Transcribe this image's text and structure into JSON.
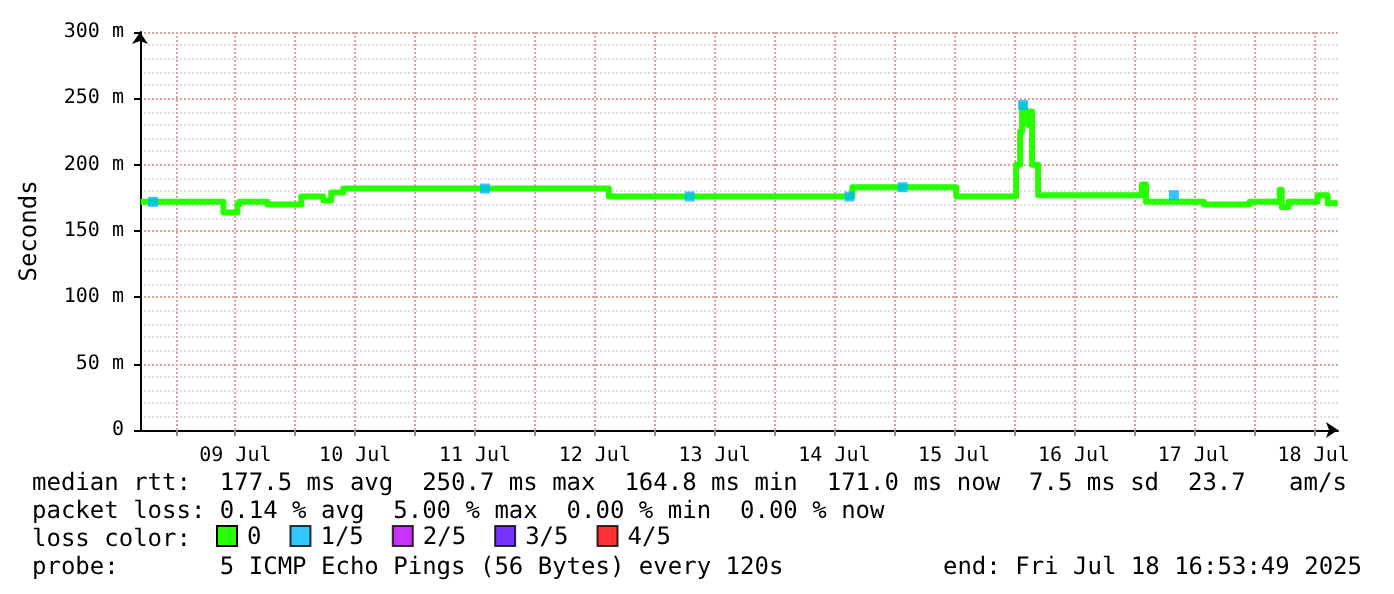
{
  "chart_data": {
    "type": "step",
    "ylabel": "Seconds",
    "legend_title": "loss color:",
    "xlim": [
      "2025-07-08T16:53",
      "2025-07-18T16:53"
    ],
    "xticks": [
      {
        "value": "2025-07-09T00:00",
        "label": null
      },
      {
        "value": "2025-07-09T12:00",
        "label": "09 Jul"
      },
      {
        "value": "2025-07-10T00:00",
        "label": null
      },
      {
        "value": "2025-07-10T12:00",
        "label": "10 Jul"
      },
      {
        "value": "2025-07-11T00:00",
        "label": null
      },
      {
        "value": "2025-07-11T12:00",
        "label": "11 Jul"
      },
      {
        "value": "2025-07-12T00:00",
        "label": null
      },
      {
        "value": "2025-07-12T12:00",
        "label": "12 Jul"
      },
      {
        "value": "2025-07-13T00:00",
        "label": null
      },
      {
        "value": "2025-07-13T12:00",
        "label": "13 Jul"
      },
      {
        "value": "2025-07-14T00:00",
        "label": null
      },
      {
        "value": "2025-07-14T12:00",
        "label": "14 Jul"
      },
      {
        "value": "2025-07-15T00:00",
        "label": null
      },
      {
        "value": "2025-07-15T12:00",
        "label": "15 Jul"
      },
      {
        "value": "2025-07-16T00:00",
        "label": null
      },
      {
        "value": "2025-07-16T12:00",
        "label": "16 Jul"
      },
      {
        "value": "2025-07-17T00:00",
        "label": null
      },
      {
        "value": "2025-07-17T12:00",
        "label": "17 Jul"
      },
      {
        "value": "2025-07-18T00:00",
        "label": null
      },
      {
        "value": "2025-07-18T12:00",
        "label": "18 Jul"
      }
    ],
    "ylim": [
      0,
      300
    ],
    "yticks": [
      0,
      {
        "value": 50,
        "label": "50 m"
      },
      {
        "value": 100,
        "label": "100 m"
      },
      {
        "value": 150,
        "label": "150 m"
      },
      {
        "value": 200,
        "label": "200 m"
      },
      {
        "value": 250,
        "label": "250 m"
      },
      {
        "value": 300,
        "label": "300 m"
      }
    ],
    "grid": true,
    "legend": "bottom",
    "line_style": "solid",
    "marker": "none",
    "series": [
      {
        "name": "0",
        "color": "#26ff00",
        "x": [
          "2025-07-08T17:00",
          "2025-07-09T09:36",
          "2025-07-09T12:24",
          "2025-07-09T12:48",
          "2025-07-09T18:24",
          "2025-07-10T01:12",
          "2025-07-10T05:36",
          "2025-07-10T07:12",
          "2025-07-10T09:36",
          "2025-07-12T14:48",
          "2025-07-14T15:36",
          "2025-07-15T12:24",
          "2025-07-16T00:24",
          "2025-07-16T01:12",
          "2025-07-16T01:36",
          "2025-07-16T02:00",
          "2025-07-16T02:24",
          "2025-07-16T02:48",
          "2025-07-16T03:12",
          "2025-07-16T03:36",
          "2025-07-16T04:48",
          "2025-07-17T01:36",
          "2025-07-17T02:24",
          "2025-07-17T14:00",
          "2025-07-17T23:12",
          "2025-07-18T05:12",
          "2025-07-18T05:36",
          "2025-07-18T07:00",
          "2025-07-18T12:48",
          "2025-07-18T14:48",
          "2025-07-18T16:50"
        ],
        "values": [
          172,
          164,
          170,
          172,
          170,
          176,
          173,
          179,
          182,
          176,
          183,
          176,
          200,
          225,
          245,
          235,
          240,
          230,
          240,
          200,
          177,
          185,
          172,
          170,
          172,
          181,
          168,
          172,
          177,
          171,
          171
        ]
      },
      {
        "name": "1/5",
        "color": "#00b8ff",
        "type": "scatter",
        "marker": "square",
        "x": [
          "2025-07-08T19:30",
          "2025-07-11T14:00",
          "2025-07-13T07:00",
          "2025-07-14T15:00",
          "2025-07-15T01:40",
          "2025-07-16T01:48",
          "2025-07-17T08:00"
        ],
        "values": [
          172,
          182,
          176,
          176,
          183,
          245,
          177
        ]
      },
      {
        "name": "2/5",
        "color": "#bd00ff",
        "type": "scatter"
      },
      {
        "name": "3/5",
        "color": "#5700ff",
        "type": "scatter"
      },
      {
        "name": "4/5",
        "color": "#ff0000",
        "type": "scatter"
      }
    ],
    "annotations": [
      "median rtt:  177.5 ms avg  250.7 ms max  164.8 ms min  171.0 ms now  7.5 ms sd  23.7   am/s",
      "packet loss: 0.14 % avg  5.00 % max  0.00 % min  0.00 % now",
      "probe:       5 ICMP Echo Pings (56 Bytes) every 120s",
      "end: Fri Jul 18 16:53:49 2025"
    ]
  }
}
